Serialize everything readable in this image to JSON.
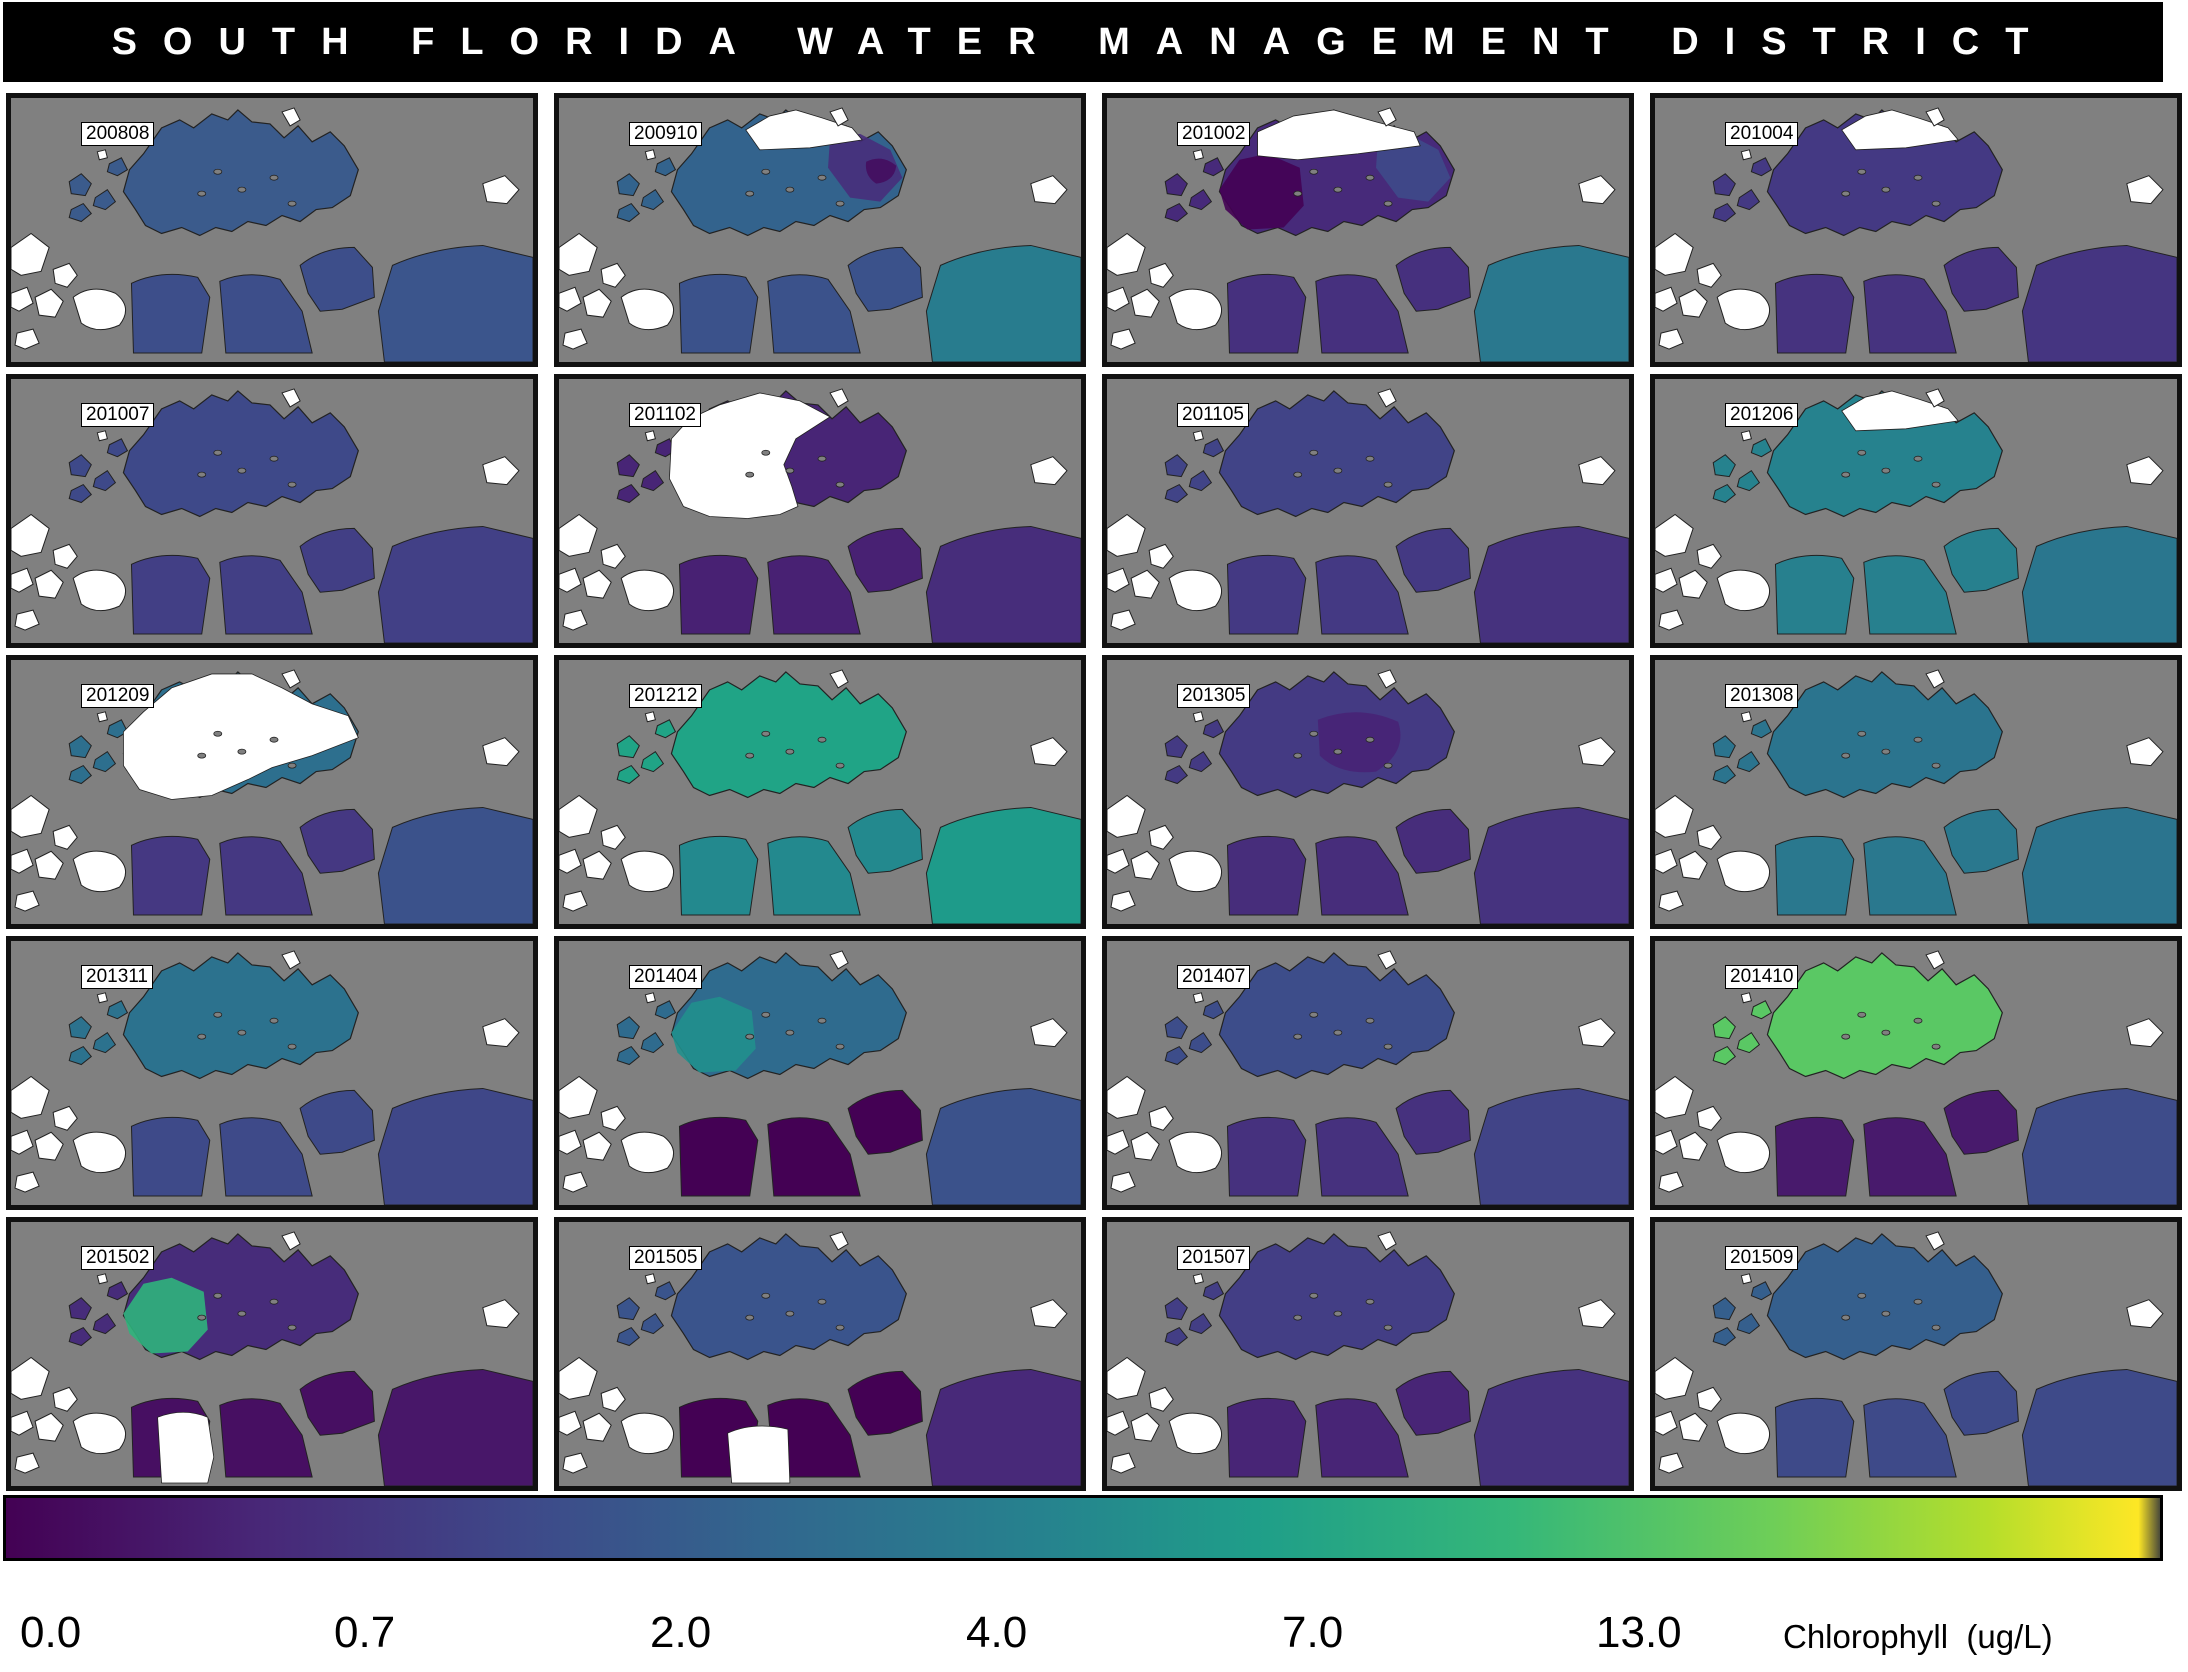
{
  "header": {
    "title": "SOUTH FLORIDA WATER MANAGEMENT DISTRICT"
  },
  "colors": {
    "land": "#808080",
    "no_data": "#ffffff",
    "border": "#111111",
    "colormap": [
      "#440154",
      "#482878",
      "#3e4989",
      "#31688e",
      "#26828e",
      "#1f9e89",
      "#35b779",
      "#6ece58",
      "#b5de2b",
      "#fde725"
    ]
  },
  "panels": [
    {
      "label": "200808",
      "chl": 1.9,
      "bay": "#3b5b8c",
      "south": "#3d4e8a",
      "east": "#3b558c",
      "nodata": "none",
      "patches": []
    },
    {
      "label": "200910",
      "chl": 1.7,
      "bay": "#33638d",
      "south": "#3b528b",
      "east": "#287c8e",
      "nodata": "north-strip",
      "patches": [
        {
          "color": "#472d7b",
          "where": "northeast"
        },
        {
          "color": "#440d5f",
          "where": "east-spot"
        }
      ]
    },
    {
      "label": "201002",
      "chl": 0.6,
      "bay": "#472a7a",
      "south": "#46307e",
      "east": "#2a788e",
      "nodata": "north-strip-wide",
      "patches": [
        {
          "color": "#440154",
          "where": "west"
        },
        {
          "color": "#3e4a89",
          "where": "northeast"
        }
      ]
    },
    {
      "label": "201004",
      "chl": 0.8,
      "bay": "#443983",
      "south": "#46337f",
      "east": "#453581",
      "nodata": "north-strip",
      "patches": []
    },
    {
      "label": "201007",
      "chl": 1.1,
      "bay": "#3e4989",
      "south": "#423f85",
      "east": "#424086",
      "nodata": "none",
      "patches": []
    },
    {
      "label": "201102",
      "chl": 0.6,
      "bay": "#482576",
      "south": "#482173",
      "east": "#472d7b",
      "nodata": "west-half",
      "patches": []
    },
    {
      "label": "201105",
      "chl": 1.1,
      "bay": "#414487",
      "south": "#443983",
      "east": "#46327e",
      "nodata": "none",
      "patches": []
    },
    {
      "label": "201206",
      "chl": 3.6,
      "bay": "#26828e",
      "south": "#27808e",
      "east": "#2a768e",
      "nodata": "north-strip",
      "patches": []
    },
    {
      "label": "201209",
      "chl": 2.0,
      "bay": "#2d6f8e",
      "south": "#453882",
      "east": "#3b528b",
      "nodata": "bay-most",
      "patches": []
    },
    {
      "label": "201212",
      "chl": 5.2,
      "bay": "#20a486",
      "south": "#23898e",
      "east": "#1e9b8a",
      "nodata": "none",
      "patches": []
    },
    {
      "label": "201305",
      "chl": 0.8,
      "bay": "#443a83",
      "south": "#472d7b",
      "east": "#46337f",
      "nodata": "none",
      "patches": [
        {
          "color": "#482475",
          "where": "center"
        }
      ]
    },
    {
      "label": "201308",
      "chl": 2.7,
      "bay": "#2b748e",
      "south": "#2a788e",
      "east": "#2b748e",
      "nodata": "none",
      "patches": []
    },
    {
      "label": "201311",
      "chl": 2.6,
      "bay": "#2c728e",
      "south": "#3e4a89",
      "east": "#3f4788",
      "nodata": "none",
      "patches": []
    },
    {
      "label": "201404",
      "chl": 2.2,
      "bay": "#2f6b8e",
      "south": "#440154",
      "east": "#3b528b",
      "nodata": "none",
      "patches": [
        {
          "color": "#21908d",
          "where": "west"
        }
      ]
    },
    {
      "label": "201407",
      "chl": 1.4,
      "bay": "#3d4d8a",
      "south": "#46317e",
      "east": "#414487",
      "nodata": "none",
      "patches": []
    },
    {
      "label": "201410",
      "chl": 8.5,
      "bay": "#5ac864",
      "south": "#481a6c",
      "east": "#3e4c8a",
      "nodata": "none",
      "patches": []
    },
    {
      "label": "201502",
      "chl": 0.9,
      "bay": "#472c7a",
      "south": "#470f62",
      "east": "#481769",
      "nodata": "south-west",
      "patches": [
        {
          "color": "#2fb47c",
          "where": "west"
        }
      ]
    },
    {
      "label": "201505",
      "chl": 1.5,
      "bay": "#3a548c",
      "south": "#440154",
      "east": "#482979",
      "nodata": "south-center",
      "patches": []
    },
    {
      "label": "201507",
      "chl": 1.0,
      "bay": "#433e85",
      "south": "#482576",
      "east": "#46327e",
      "nodata": "none",
      "patches": []
    },
    {
      "label": "201509",
      "chl": 1.7,
      "bay": "#355f8d",
      "south": "#3e4a89",
      "east": "#3e4a89",
      "nodata": "none",
      "patches": []
    }
  ],
  "colorbar": {
    "tick_labels": [
      "0.0",
      "0.7",
      "2.0",
      "4.0",
      "7.0",
      "13.0"
    ],
    "unit_label": "Chlorophyll  (ug/L)"
  }
}
